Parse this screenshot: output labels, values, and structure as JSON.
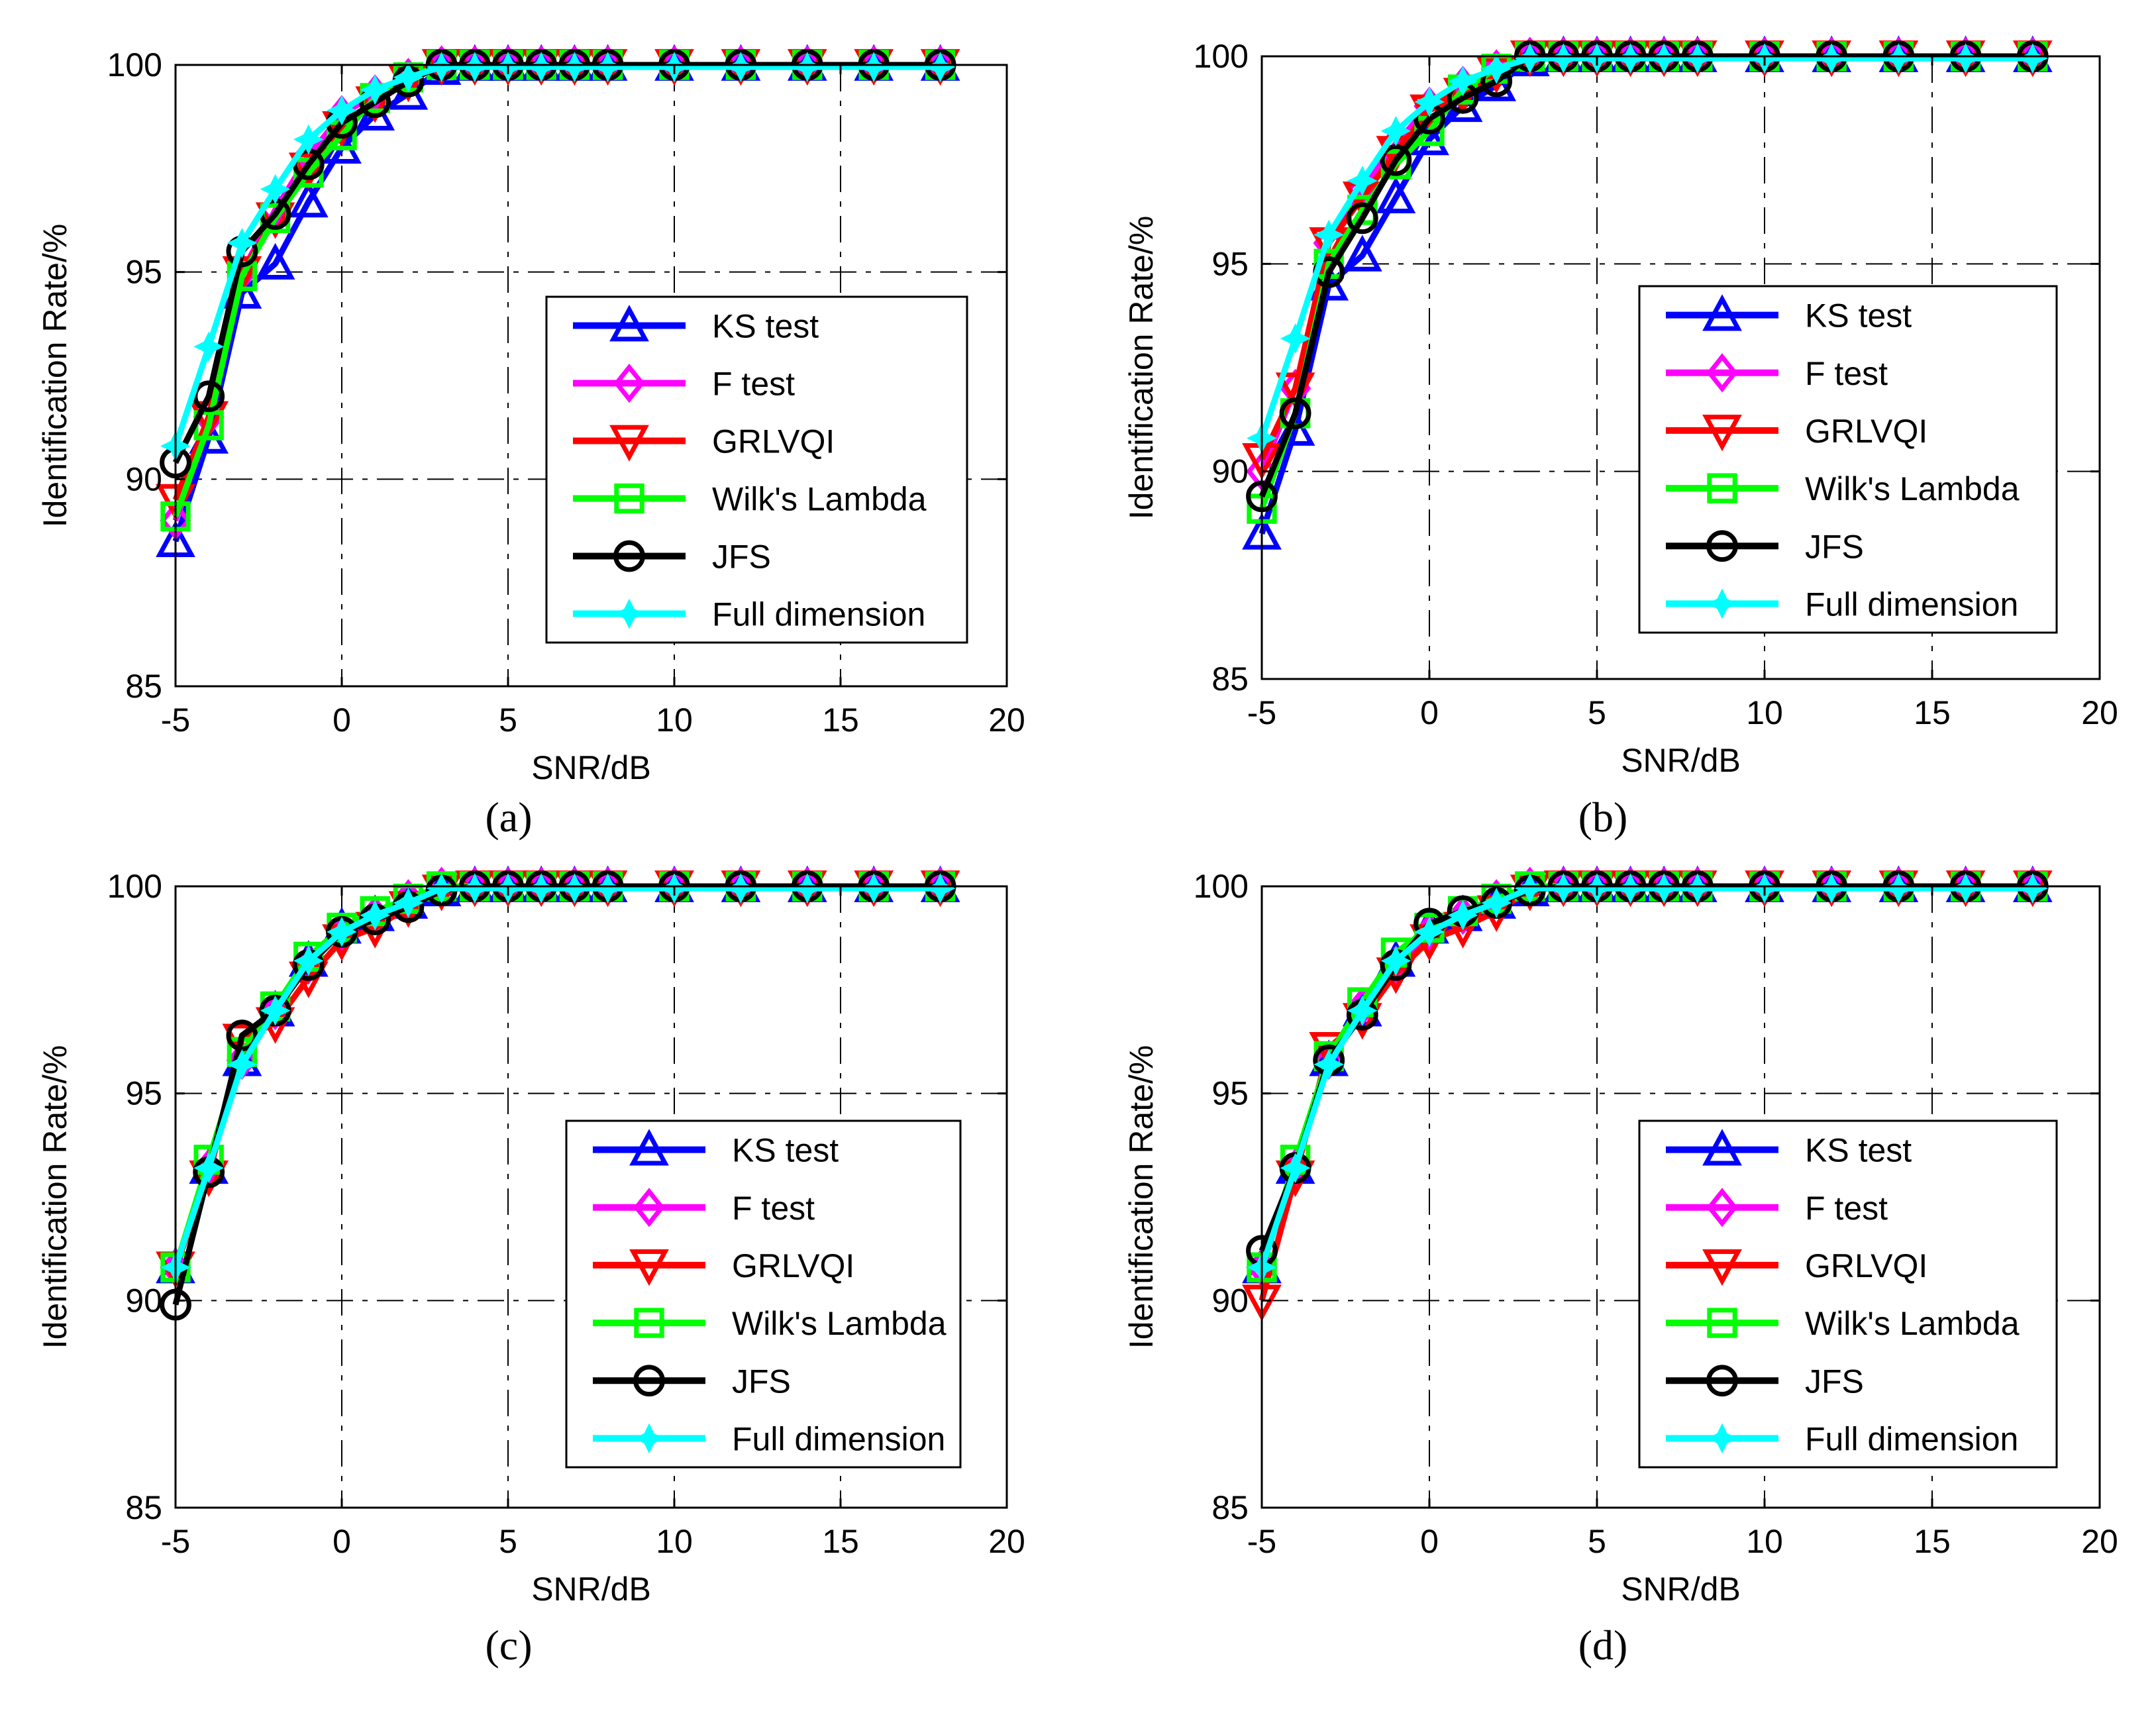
{
  "figure": {
    "panels": [
      "(a)",
      "(b)",
      "(c)",
      "(d)"
    ]
  },
  "chart_data": [
    {
      "type": "line",
      "panel": "(a)",
      "xlabel": "SNR/dB",
      "ylabel": "Identification Rate/%",
      "xlim": [
        -5,
        20
      ],
      "ylim": [
        85,
        100
      ],
      "xticks": [
        "-5",
        "0",
        "5",
        "10",
        "15",
        "20"
      ],
      "yticks": [
        "85",
        "90",
        "95",
        "100"
      ],
      "grid": true,
      "legend_position": "center-right",
      "x": [
        -5,
        -4,
        -3,
        -2,
        -1,
        0,
        1,
        2,
        3,
        4,
        5,
        6,
        7,
        8,
        10,
        12,
        14,
        16,
        18
      ],
      "series": [
        {
          "name": "KS test",
          "color": "#0000ff",
          "marker": "triangle-up",
          "values": [
            88.5,
            91.0,
            94.5,
            95.2,
            96.7,
            98.0,
            98.8,
            99.3,
            99.9,
            100,
            100,
            100,
            100,
            100,
            100,
            100,
            100,
            100,
            100
          ]
        },
        {
          "name": "F test",
          "color": "#ff00ff",
          "marker": "diamond",
          "values": [
            89.0,
            91.5,
            95.0,
            96.5,
            97.8,
            98.8,
            99.3,
            99.7,
            100,
            100,
            100,
            100,
            100,
            100,
            100,
            100,
            100,
            100,
            100
          ]
        },
        {
          "name": "GRLVQI",
          "color": "#ff0000",
          "marker": "triangle-down",
          "values": [
            89.5,
            91.5,
            95.0,
            96.3,
            97.5,
            98.5,
            99.1,
            99.6,
            100,
            100,
            100,
            100,
            100,
            100,
            100,
            100,
            100,
            100,
            100
          ]
        },
        {
          "name": "Wilk's Lambda",
          "color": "#00ff00",
          "marker": "square",
          "values": [
            89.1,
            91.3,
            94.9,
            96.3,
            97.4,
            98.3,
            99.2,
            99.7,
            100,
            100,
            100,
            100,
            100,
            100,
            100,
            100,
            100,
            100,
            100
          ]
        },
        {
          "name": "JFS",
          "color": "#000000",
          "marker": "circle",
          "values": [
            90.4,
            92.0,
            95.5,
            96.4,
            97.6,
            98.6,
            99.1,
            99.6,
            100,
            100,
            100,
            100,
            100,
            100,
            100,
            100,
            100,
            100,
            100
          ]
        },
        {
          "name": "Full dimension",
          "color": "#00ffff",
          "marker": "star",
          "values": [
            90.8,
            93.2,
            95.7,
            97.0,
            98.2,
            98.9,
            99.4,
            99.7,
            99.95,
            99.95,
            99.95,
            99.95,
            99.95,
            99.95,
            99.95,
            99.95,
            99.95,
            99.95,
            99.95
          ]
        }
      ]
    },
    {
      "type": "line",
      "panel": "(b)",
      "xlabel": "SNR/dB",
      "ylabel": "Identification Rate/%",
      "xlim": [
        -5,
        20
      ],
      "ylim": [
        85,
        100
      ],
      "xticks": [
        "-5",
        "0",
        "5",
        "10",
        "15",
        "20"
      ],
      "yticks": [
        "85",
        "90",
        "95",
        "100"
      ],
      "grid": true,
      "legend_position": "center-right",
      "x": [
        -5,
        -4,
        -3,
        -2,
        -1,
        0,
        1,
        2,
        3,
        4,
        5,
        6,
        7,
        8,
        10,
        12,
        14,
        16,
        18
      ],
      "series": [
        {
          "name": "KS test",
          "color": "#0000ff",
          "marker": "triangle-up",
          "values": [
            88.5,
            91.0,
            94.5,
            95.2,
            96.6,
            98.0,
            98.8,
            99.3,
            99.9,
            100,
            100,
            100,
            100,
            100,
            100,
            100,
            100,
            100,
            100
          ]
        },
        {
          "name": "F test",
          "color": "#ff00ff",
          "marker": "diamond",
          "values": [
            90.0,
            92.0,
            95.5,
            96.8,
            97.9,
            98.8,
            99.3,
            99.7,
            100,
            100,
            100,
            100,
            100,
            100,
            100,
            100,
            100,
            100,
            100
          ]
        },
        {
          "name": "GRLVQI",
          "color": "#ff0000",
          "marker": "triangle-down",
          "values": [
            90.3,
            92.0,
            95.5,
            96.6,
            97.7,
            98.7,
            99.1,
            99.6,
            100,
            100,
            100,
            100,
            100,
            100,
            100,
            100,
            100,
            100,
            100
          ]
        },
        {
          "name": "Wilk's Lambda",
          "color": "#00ff00",
          "marker": "square",
          "values": [
            89.1,
            91.4,
            95.0,
            96.3,
            97.4,
            98.2,
            99.2,
            99.7,
            100,
            100,
            100,
            100,
            100,
            100,
            100,
            100,
            100,
            100,
            100
          ]
        },
        {
          "name": "JFS",
          "color": "#000000",
          "marker": "circle",
          "values": [
            89.4,
            91.4,
            94.8,
            96.1,
            97.5,
            98.5,
            99.0,
            99.4,
            100,
            100,
            100,
            100,
            100,
            100,
            100,
            100,
            100,
            100,
            100
          ]
        },
        {
          "name": "Full dimension",
          "color": "#00ffff",
          "marker": "star",
          "values": [
            90.8,
            93.2,
            95.7,
            97.0,
            98.2,
            98.9,
            99.4,
            99.7,
            99.95,
            99.95,
            99.95,
            99.95,
            99.95,
            99.95,
            99.95,
            99.95,
            99.95,
            99.95,
            99.95
          ]
        }
      ]
    },
    {
      "type": "line",
      "panel": "(c)",
      "xlabel": "SNR/dB",
      "ylabel": "Identification Rate/%",
      "xlim": [
        -5,
        20
      ],
      "ylim": [
        85,
        100
      ],
      "xticks": [
        "-5",
        "0",
        "5",
        "10",
        "15",
        "20"
      ],
      "yticks": [
        "85",
        "90",
        "95",
        "100"
      ],
      "grid": true,
      "legend_position": "lower-right",
      "x": [
        -5,
        -4,
        -3,
        -2,
        -1,
        0,
        1,
        2,
        3,
        4,
        5,
        6,
        7,
        8,
        10,
        12,
        14,
        16,
        18
      ],
      "series": [
        {
          "name": "KS test",
          "color": "#0000ff",
          "marker": "triangle-up",
          "values": [
            90.8,
            93.2,
            95.8,
            97.0,
            98.2,
            99.0,
            99.3,
            99.6,
            99.9,
            100,
            100,
            100,
            100,
            100,
            100,
            100,
            100,
            100,
            100
          ]
        },
        {
          "name": "F test",
          "color": "#ff00ff",
          "marker": "diamond",
          "values": [
            90.8,
            93.2,
            95.8,
            97.0,
            98.1,
            98.9,
            99.3,
            99.7,
            100,
            100,
            100,
            100,
            100,
            100,
            100,
            100,
            100,
            100,
            100
          ]
        },
        {
          "name": "GRLVQI",
          "color": "#ff0000",
          "marker": "triangle-down",
          "values": [
            90.8,
            93.0,
            96.3,
            96.7,
            97.8,
            98.7,
            99.0,
            99.5,
            99.9,
            100,
            100,
            100,
            100,
            100,
            100,
            100,
            100,
            100,
            100
          ]
        },
        {
          "name": "Wilk's Lambda",
          "color": "#00ff00",
          "marker": "square",
          "values": [
            90.8,
            93.4,
            96.0,
            97.1,
            98.3,
            99.0,
            99.4,
            99.7,
            100,
            100,
            100,
            100,
            100,
            100,
            100,
            100,
            100,
            100,
            100
          ]
        },
        {
          "name": "JFS",
          "color": "#000000",
          "marker": "circle",
          "values": [
            89.9,
            93.1,
            96.4,
            97.0,
            98.1,
            98.9,
            99.2,
            99.5,
            99.9,
            100,
            100,
            100,
            100,
            100,
            100,
            100,
            100,
            100,
            100
          ]
        },
        {
          "name": "Full dimension",
          "color": "#00ffff",
          "marker": "star",
          "values": [
            90.8,
            93.2,
            95.7,
            97.0,
            98.2,
            98.9,
            99.3,
            99.6,
            99.95,
            99.95,
            99.95,
            99.95,
            99.95,
            99.95,
            99.95,
            99.95,
            99.95,
            99.95,
            99.95
          ]
        }
      ]
    },
    {
      "type": "line",
      "panel": "(d)",
      "xlabel": "SNR/dB",
      "ylabel": "Identification Rate/%",
      "xlim": [
        -5,
        20
      ],
      "ylim": [
        85,
        100
      ],
      "xticks": [
        "-5",
        "0",
        "5",
        "10",
        "15",
        "20"
      ],
      "yticks": [
        "85",
        "90",
        "95",
        "100"
      ],
      "grid": true,
      "legend_position": "lower-right",
      "x": [
        -5,
        -4,
        -3,
        -2,
        -1,
        0,
        1,
        2,
        3,
        4,
        5,
        6,
        7,
        8,
        10,
        12,
        14,
        16,
        18
      ],
      "series": [
        {
          "name": "KS test",
          "color": "#0000ff",
          "marker": "triangle-up",
          "values": [
            90.8,
            93.2,
            95.8,
            97.0,
            98.2,
            99.0,
            99.3,
            99.6,
            99.9,
            100,
            100,
            100,
            100,
            100,
            100,
            100,
            100,
            100,
            100
          ]
        },
        {
          "name": "F test",
          "color": "#ff00ff",
          "marker": "diamond",
          "values": [
            90.8,
            93.2,
            95.8,
            97.1,
            98.1,
            98.9,
            99.3,
            99.7,
            100,
            100,
            100,
            100,
            100,
            100,
            100,
            100,
            100,
            100,
            100
          ]
        },
        {
          "name": "GRLVQI",
          "color": "#ff0000",
          "marker": "triangle-down",
          "values": [
            90.0,
            93.0,
            96.1,
            96.8,
            97.9,
            98.7,
            99.0,
            99.4,
            99.9,
            100,
            100,
            100,
            100,
            100,
            100,
            100,
            100,
            100,
            100
          ]
        },
        {
          "name": "Wilk's Lambda",
          "color": "#00ff00",
          "marker": "square",
          "values": [
            90.8,
            93.4,
            95.9,
            97.2,
            98.4,
            99.0,
            99.4,
            99.7,
            100,
            100,
            100,
            100,
            100,
            100,
            100,
            100,
            100,
            100,
            100
          ]
        },
        {
          "name": "JFS",
          "color": "#000000",
          "marker": "circle",
          "values": [
            91.2,
            93.2,
            95.8,
            96.9,
            98.1,
            99.1,
            99.4,
            99.6,
            99.9,
            100,
            100,
            100,
            100,
            100,
            100,
            100,
            100,
            100,
            100
          ]
        },
        {
          "name": "Full dimension",
          "color": "#00ffff",
          "marker": "star",
          "values": [
            90.8,
            93.2,
            95.7,
            97.0,
            98.2,
            98.9,
            99.3,
            99.6,
            99.95,
            99.95,
            99.95,
            99.95,
            99.95,
            99.95,
            99.95,
            99.95,
            99.95,
            99.95,
            99.95
          ]
        }
      ]
    }
  ]
}
